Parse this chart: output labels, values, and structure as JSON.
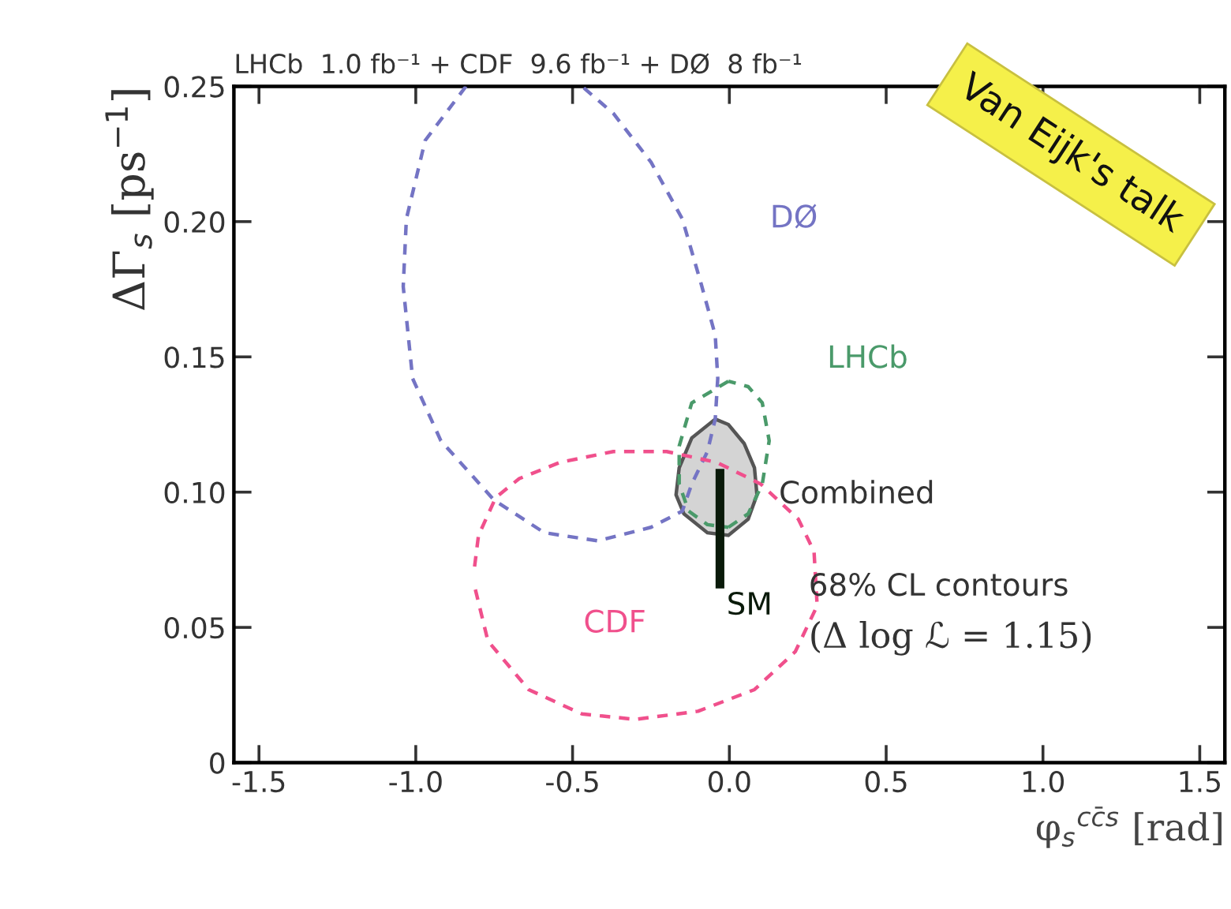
{
  "chart_data": {
    "type": "line",
    "title": "LHCb  1.0 fb⁻¹ + CDF  9.6 fb⁻¹ + DØ  8 fb⁻¹",
    "xlabel": "φ$_{s}$$^{cc̄s}$ [rad]",
    "ylabel": "ΔΓ$_{s}$ [ps$^{−1}$]",
    "xlim": [
      -1.58,
      1.58
    ],
    "ylim": [
      0,
      0.25
    ],
    "xticks": [
      -1.5,
      {
        "value": -1,
        "label": "-1.0"
      },
      -0.5,
      {
        "value": 0,
        "label": "0.0"
      },
      0.5,
      {
        "value": 1,
        "label": "1.0"
      },
      1.5
    ],
    "yticks": [
      0,
      0.05,
      {
        "value": 0.1,
        "label": "0.10"
      },
      0.15,
      {
        "value": 0.2,
        "label": "0.20"
      },
      0.25
    ],
    "line_style": "dashed",
    "series": [
      {
        "name": "DØ",
        "color": "#7474c4",
        "x": [
          -0.84,
          -0.97,
          -1.03,
          -1.04,
          -1.01,
          -0.92,
          -0.75,
          -0.59,
          -0.42,
          -0.25,
          -0.15,
          -0.12,
          -0.07,
          -0.045,
          -0.037,
          -0.045,
          -0.09,
          -0.15,
          -0.25,
          -0.37,
          -0.47
        ],
        "values": [
          0.25,
          0.23,
          0.201,
          0.176,
          0.142,
          0.119,
          0.097,
          0.085,
          0.082,
          0.087,
          0.093,
          0.103,
          0.115,
          0.127,
          0.142,
          0.158,
          0.177,
          0.201,
          0.222,
          0.24,
          0.25
        ]
      },
      {
        "name": "CDF",
        "color": "#f0508c",
        "x": [
          -0.81,
          -0.77,
          -0.64,
          -0.47,
          -0.3,
          -0.1,
          0.08,
          0.21,
          0.28,
          0.27,
          0.22,
          0.1,
          -0.04,
          -0.2,
          -0.37,
          -0.54,
          -0.67,
          -0.745,
          -0.8,
          -0.813
        ],
        "values": [
          0.064,
          0.045,
          0.027,
          0.018,
          0.016,
          0.019,
          0.027,
          0.041,
          0.058,
          0.078,
          0.09,
          0.103,
          0.111,
          0.115,
          0.115,
          0.111,
          0.105,
          0.098,
          0.084,
          0.072
        ]
      },
      {
        "name": "LHCb",
        "color": "#4a9a6a",
        "x": [
          -0.003,
          -0.12,
          -0.16,
          -0.16,
          -0.13,
          -0.07,
          -0.003
        ],
        "values": [
          0.141,
          0.133,
          0.117,
          0.103,
          0.093,
          0.088,
          0.087
        ]
      },
      {
        "color": "#4a9a6a",
        "x": [
          -0.003,
          0.06,
          0.105,
          0.127,
          0.105,
          0.06,
          -0.003
        ],
        "values": [
          0.087,
          0.092,
          0.103,
          0.119,
          0.133,
          0.139,
          0.141
        ]
      },
      {
        "name": "Combined",
        "type": "area",
        "color": "#d4d4d4",
        "x": [
          -0.045,
          -0.12,
          -0.16,
          -0.17,
          -0.145,
          -0.07,
          -0.003,
          0.06,
          0.088,
          0.08,
          0.047,
          -0.003,
          -0.045
        ],
        "values": [
          0.127,
          0.12,
          0.109,
          0.099,
          0.092,
          0.085,
          0.084,
          0.09,
          0.099,
          0.109,
          0.118,
          0.125,
          0.127
        ]
      },
      {
        "name": "SM",
        "color": "#0a1a0a",
        "line_style": "solid",
        "x": [
          -0.03,
          -0.03
        ],
        "values": [
          0.066,
          0.107
        ]
      }
    ],
    "annotations": [
      "68% CL contours",
      "(Δ log ℒ = 1.15)",
      "Van Eijk's talk"
    ]
  }
}
